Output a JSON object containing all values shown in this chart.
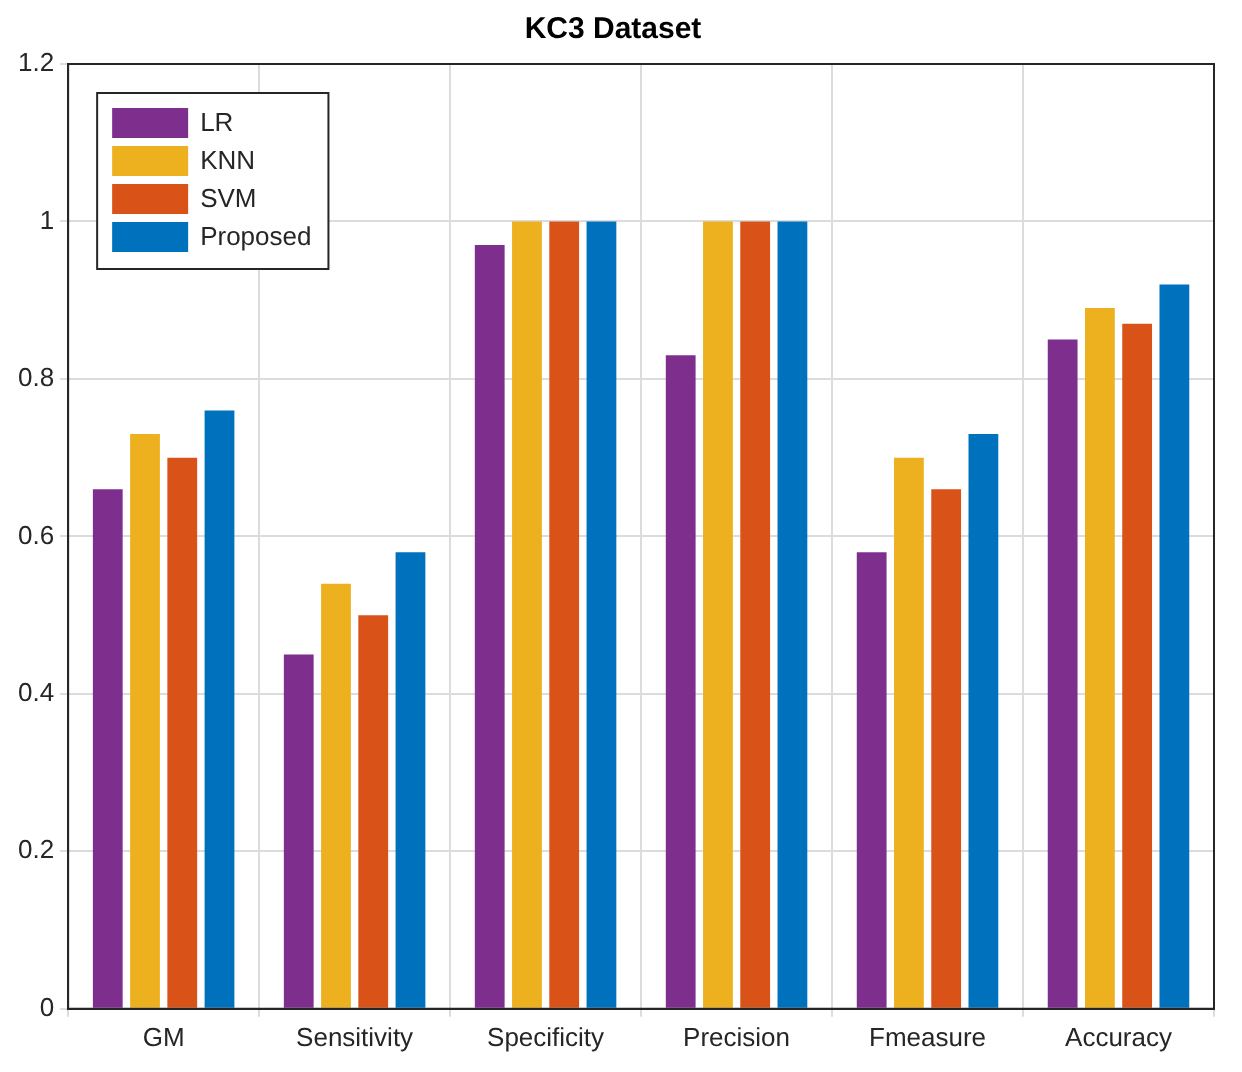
{
  "chart_data": {
    "type": "bar",
    "title": "KC3 Dataset",
    "categories": [
      "GM",
      "Sensitivity",
      "Specificity",
      "Precision",
      "Fmeasure",
      "Accuracy"
    ],
    "series": [
      {
        "name": "LR",
        "color": "#7e2f8e",
        "values": [
          0.66,
          0.45,
          0.97,
          0.83,
          0.58,
          0.85
        ]
      },
      {
        "name": "KNN",
        "color": "#edb120",
        "values": [
          0.73,
          0.54,
          1,
          1,
          0.7,
          0.89
        ]
      },
      {
        "name": "SVM",
        "color": "#d95319",
        "values": [
          0.7,
          0.5,
          1,
          1,
          0.66,
          0.87
        ]
      },
      {
        "name": "Proposed",
        "color": "#0072bd",
        "values": [
          0.76,
          0.58,
          1,
          1,
          0.73,
          0.92
        ]
      }
    ],
    "ylim": [
      0,
      1.2
    ],
    "yticks": [
      0,
      0.2,
      0.4,
      0.6,
      0.8,
      1,
      1.2
    ],
    "grid": true,
    "legend": "top left"
  }
}
